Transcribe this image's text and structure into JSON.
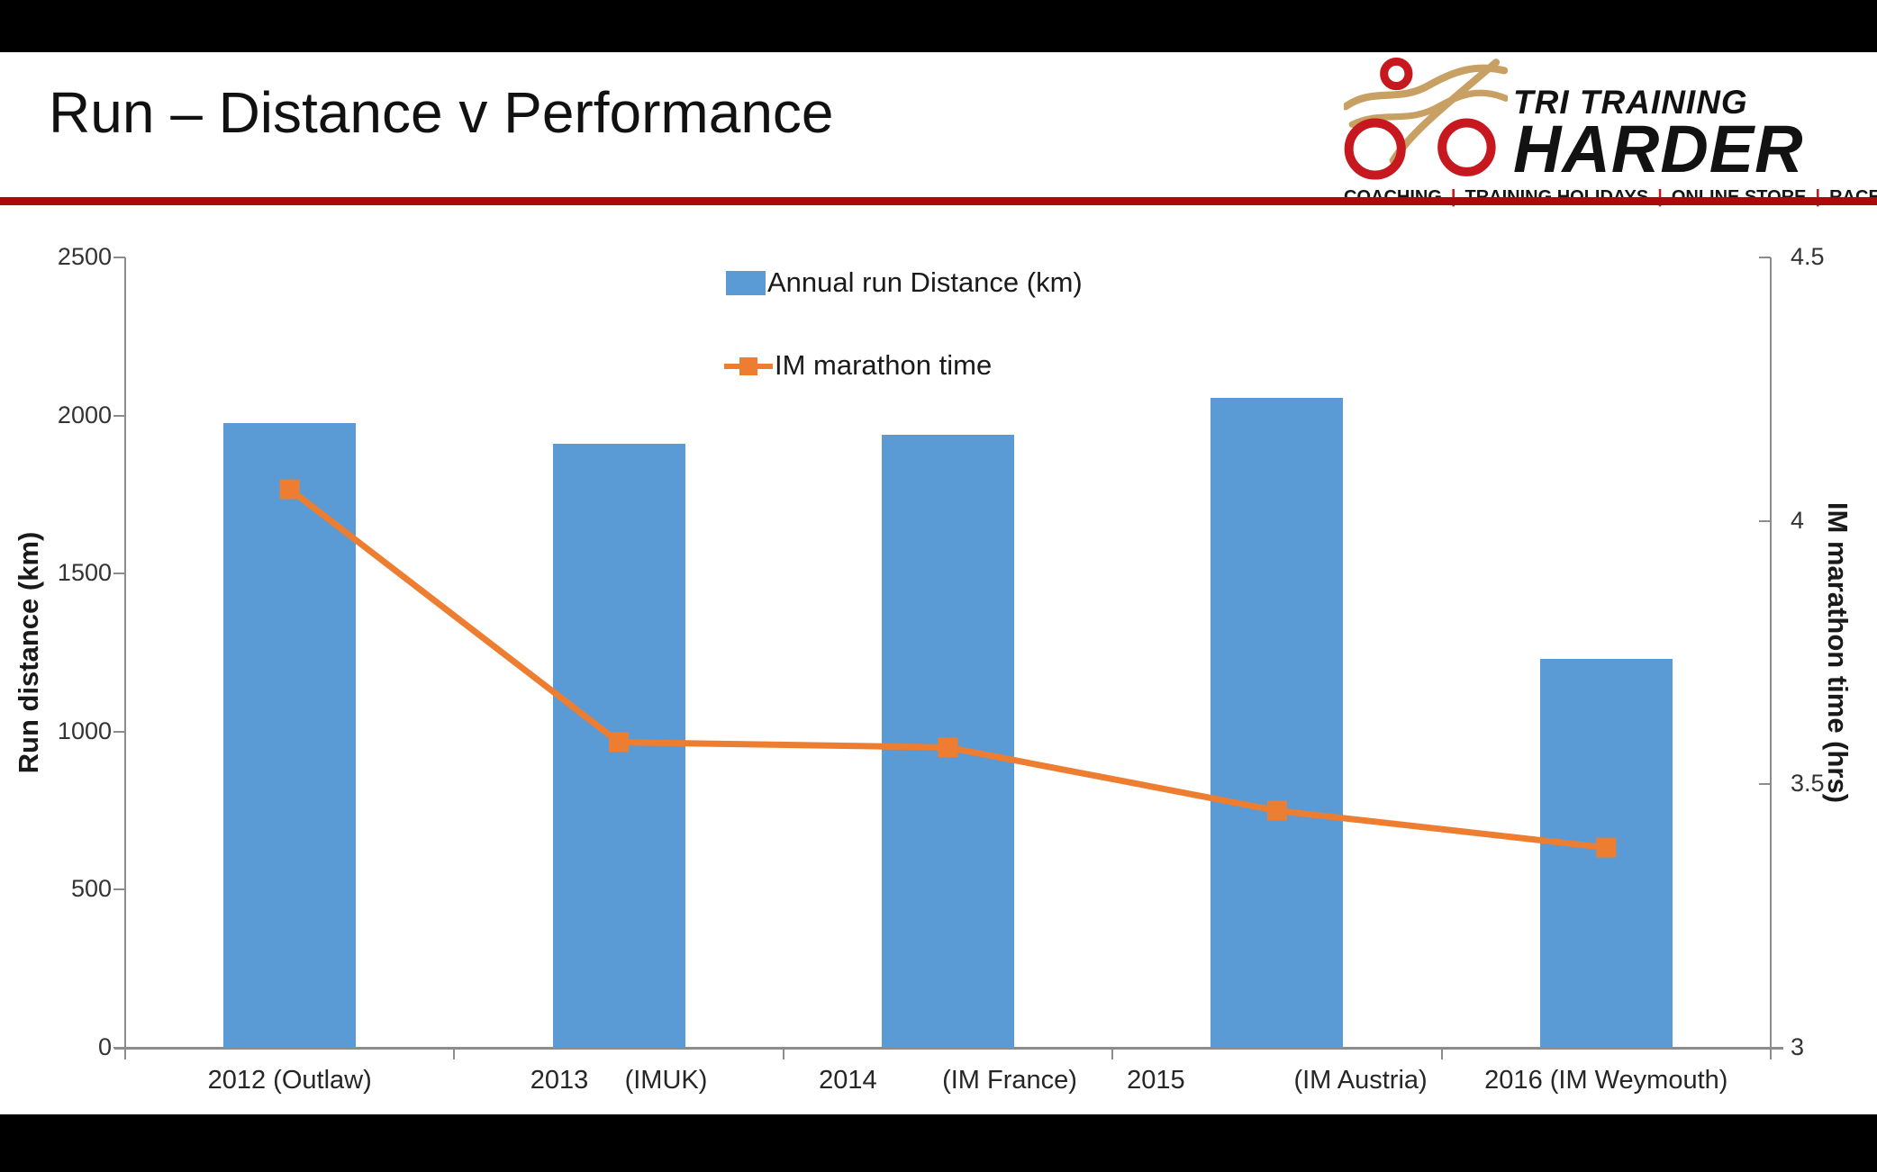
{
  "slide": {
    "title": "Run – Distance v Performance"
  },
  "logo": {
    "brand_top": "TRI TRAINING",
    "brand_bottom": "HARDER",
    "tagline_items": [
      "COACHING",
      "TRAINING HOLIDAYS",
      "ONLINE STORE",
      "RACE TEAM"
    ],
    "tagline_separator": "|",
    "ring_red": "#c6181e",
    "swoosh_gold": "#c8a063"
  },
  "divider_color": "#ab0a0d",
  "chart_data": {
    "type": "bar+line combo",
    "title": "",
    "categories": [
      "2012 (Outlaw)",
      "2013 (IMUK)",
      "2014 (IM France)",
      "2015 (IM Austria)",
      "2016 (IM Weymouth)"
    ],
    "x_tick_display": [
      "2012 (Outlaw)",
      "2013     (IMUK)",
      "2014         (IM France)",
      "2015               (IM Austria)",
      "2016 (IM Weymouth)"
    ],
    "series": [
      {
        "name": "Annual run Distance (km)",
        "type": "bar",
        "axis": "left",
        "color": "#5b9bd5",
        "values": [
          1975,
          1910,
          1940,
          2055,
          1230
        ]
      },
      {
        "name": "IM marathon time",
        "type": "line",
        "axis": "right",
        "color": "#ed7d31",
        "marker": "square",
        "values": [
          4.06,
          3.58,
          3.57,
          3.45,
          3.38
        ]
      }
    ],
    "left_axis": {
      "label": "Run distance (km)",
      "min": 0,
      "max": 2500,
      "step": 500,
      "ticks": [
        "0",
        "500",
        "1000",
        "1500",
        "2000",
        "2500"
      ]
    },
    "right_axis": {
      "label": "IM marathon time (hrs)",
      "min": 3,
      "max": 4.5,
      "step": 0.5,
      "ticks": [
        "3",
        "3.5",
        "4",
        "4.5"
      ]
    },
    "legend": {
      "position": "top-center"
    },
    "grid": false
  }
}
